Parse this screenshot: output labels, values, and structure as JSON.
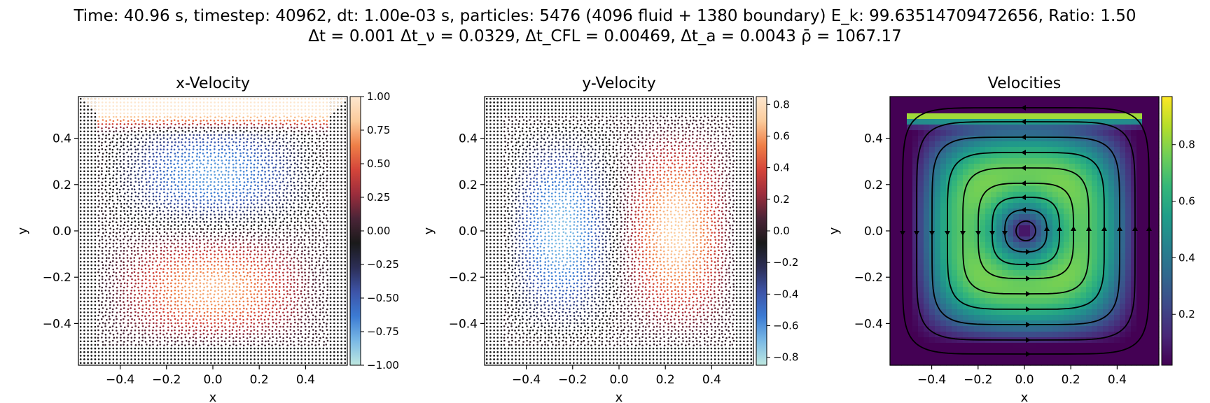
{
  "header": {
    "title_line1": "Time: 40.96 s, timestep: 40962, dt: 1.00e-03 s, particles: 5476 (4096 fluid + 1380 boundary) E_k: 99.63514709472656, Ratio:  1.50",
    "title_line2": "Δt = 0.001 Δt_ν = 0.0329, Δt_CFL = 0.00469, Δt_a = 0.0043 ρ̄ = 1067.17"
  },
  "chart_data": [
    {
      "type": "scatter",
      "title": "x-Velocity",
      "xlabel": "x",
      "ylabel": "y",
      "xlim": [
        -0.58,
        0.58
      ],
      "ylim": [
        -0.58,
        0.58
      ],
      "xticks": [
        "−0.4",
        "−0.2",
        "0.0",
        "0.2",
        "0.4"
      ],
      "yticks": [
        "0.4",
        "0.2",
        "0.0",
        "−0.2",
        "−0.4"
      ],
      "colormap": "icefire",
      "colorbar_range": [
        -1.0,
        1.0
      ],
      "colorbar_ticks": [
        "1.00",
        "0.75",
        "0.50",
        "0.25",
        "0.00",
        "−0.25",
        "−0.50",
        "−0.75",
        "−1.00"
      ],
      "lid_velocity": 1.0
    },
    {
      "type": "scatter",
      "title": "y-Velocity",
      "xlabel": "x",
      "ylabel": "y",
      "xlim": [
        -0.58,
        0.58
      ],
      "ylim": [
        -0.58,
        0.58
      ],
      "xticks": [
        "−0.4",
        "−0.2",
        "0.0",
        "0.2",
        "0.4"
      ],
      "yticks": [
        "0.4",
        "0.2",
        "0.0",
        "−0.2",
        "−0.4"
      ],
      "colormap": "icefire",
      "colorbar_range": [
        -0.85,
        0.85
      ],
      "colorbar_ticks": [
        "0.8",
        "0.6",
        "0.4",
        "0.2",
        "0.0",
        "−0.2",
        "−0.4",
        "−0.6",
        "−0.8"
      ]
    },
    {
      "type": "heatmap",
      "title": "Velocities",
      "xlabel": "x",
      "ylabel": "y",
      "xlim": [
        -0.58,
        0.58
      ],
      "ylim": [
        -0.58,
        0.58
      ],
      "xticks": [
        "−0.4",
        "−0.2",
        "0.0",
        "0.2",
        "0.4"
      ],
      "yticks": [
        "0.4",
        "0.2",
        "0.0",
        "−0.2",
        "−0.4"
      ],
      "colormap": "viridis",
      "colorbar_range": [
        0.02,
        0.97
      ],
      "colorbar_ticks": [
        "0.8",
        "0.6",
        "0.4",
        "0.2"
      ],
      "streamlines": true
    }
  ],
  "colors": {
    "icefire": [
      "#bfe8e0",
      "#7ab9e5",
      "#3c7bd3",
      "#3d54a8",
      "#2c2e56",
      "#1a1a1a",
      "#4a2437",
      "#9b2d3c",
      "#d4453a",
      "#ef7f47",
      "#fbcb9b",
      "#fde7cf"
    ],
    "viridis": [
      "#440154",
      "#482878",
      "#3e4989",
      "#31688e",
      "#26828e",
      "#1f9e89",
      "#35b779",
      "#6ece58",
      "#b5de2b",
      "#fde725"
    ],
    "boundary": "#1a1a1a",
    "streamline": "#000000"
  }
}
